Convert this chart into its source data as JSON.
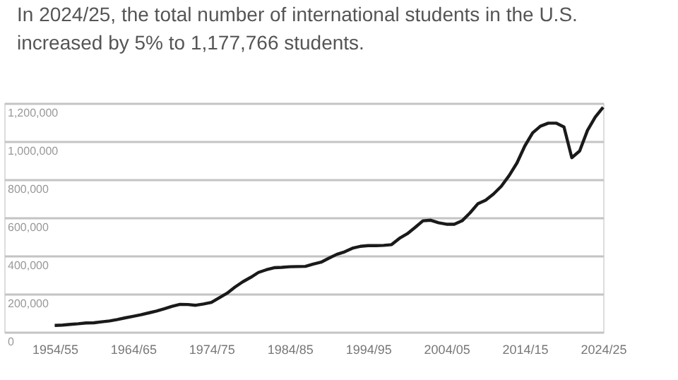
{
  "chart_data": {
    "type": "line",
    "title": "In 2024/25, the total number of international students in the U.S. increased by 5% to 1,177,766 students.",
    "categories": [
      "1954/55",
      null,
      null,
      null,
      null,
      null,
      null,
      null,
      null,
      null,
      "1964/65",
      null,
      null,
      null,
      null,
      null,
      null,
      null,
      null,
      null,
      "1974/75",
      null,
      null,
      null,
      null,
      null,
      null,
      null,
      null,
      null,
      "1984/85",
      null,
      null,
      null,
      null,
      null,
      null,
      null,
      null,
      null,
      "1994/95",
      null,
      null,
      null,
      null,
      null,
      null,
      null,
      null,
      null,
      "2004/05",
      null,
      null,
      null,
      null,
      null,
      null,
      null,
      null,
      null,
      "2014/15",
      null,
      null,
      null,
      null,
      null,
      null,
      null,
      null,
      null,
      "2024/25"
    ],
    "series": [
      {
        "color": "#1a1a1a",
        "values": [
          34000,
          36000,
          40000,
          43000,
          47000,
          48000,
          53000,
          58000,
          65000,
          74000,
          82000,
          90000,
          100000,
          110000,
          122000,
          135000,
          145000,
          144000,
          140000,
          147000,
          155000,
          179000,
          203000,
          235000,
          263000,
          286000,
          312000,
          326000,
          337000,
          339000,
          342000,
          343000,
          344000,
          356000,
          366000,
          387000,
          407000,
          420000,
          439000,
          449000,
          453000,
          453000,
          454000,
          458000,
          491000,
          515000,
          548000,
          583000,
          586000,
          573000,
          565000,
          565000,
          583000,
          624000,
          672000,
          691000,
          723000,
          764000,
          820000,
          886000,
          975000,
          1044000,
          1079000,
          1095000,
          1095000,
          1075000,
          914000,
          949000,
          1057000,
          1127000,
          1178000
        ]
      }
    ],
    "ylim": [
      0,
      1200000
    ],
    "yticks": [
      0,
      {
        "value": 200000,
        "label": "200,000"
      },
      {
        "value": 400000,
        "label": "400,000"
      },
      {
        "value": 600000,
        "label": "600,000"
      },
      {
        "value": 800000,
        "label": "800,000"
      },
      {
        "value": 1000000,
        "label": "1,000,000"
      },
      {
        "value": 1200000,
        "label": "1,200,000"
      }
    ],
    "grid": "y",
    "marker": "none",
    "line_style": "solid"
  }
}
